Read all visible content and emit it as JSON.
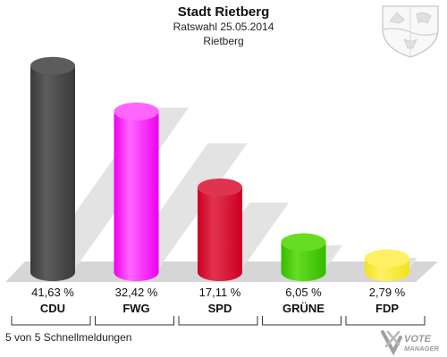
{
  "header": {
    "title": "Stadt Rietberg",
    "subtitle": "Ratswahl 25.05.2014",
    "location": "Rietberg"
  },
  "footer": {
    "status": "5 von 5 Schnellmeldungen",
    "logo_line1": "VOTE",
    "logo_line2": "MANAGER"
  },
  "emblem_icon": "coat-of-arms-icon",
  "chart_data": {
    "type": "bar",
    "title": "Stadt Rietberg",
    "subtitle": "Ratswahl 25.05.2014",
    "ylim": [
      0,
      45
    ],
    "grid": false,
    "categories": [
      "CDU",
      "FWG",
      "SPD",
      "GRÜNE",
      "FDP"
    ],
    "values": [
      41.63,
      32.42,
      17.11,
      6.05,
      2.79
    ],
    "value_labels": [
      "41,63 %",
      "32,42 %",
      "17,11 %",
      "6,05 %",
      "2,79 %"
    ],
    "colors": [
      "#3a3a3a",
      "#ee00ee",
      "#cc0022",
      "#33bb00",
      "#f2e21a"
    ],
    "colors_light": [
      "#5c5c5c",
      "#ff66ff",
      "#e0334f",
      "#66dd22",
      "#fff066"
    ]
  }
}
